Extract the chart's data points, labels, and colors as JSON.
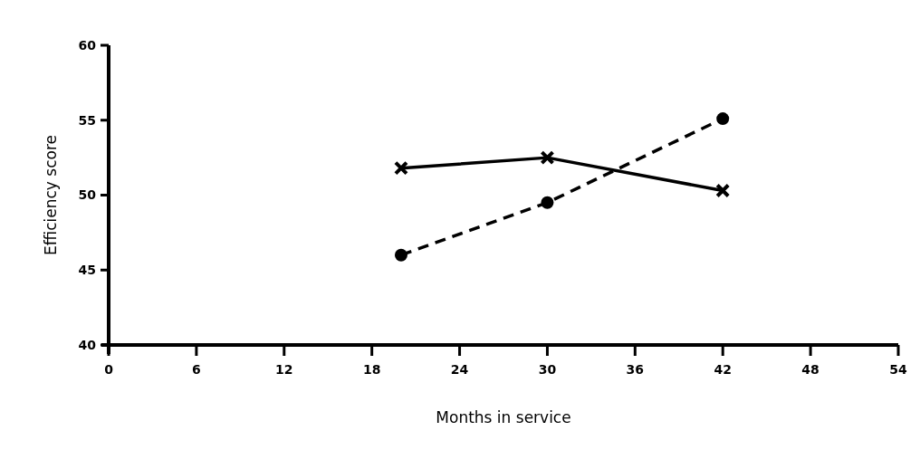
{
  "chart_data": {
    "type": "line",
    "xlabel": "Months in service",
    "ylabel": "Efficiency score",
    "xlim": [
      0,
      54
    ],
    "xticks": [
      0,
      6,
      12,
      18,
      24,
      30,
      36,
      42,
      48,
      54
    ],
    "ylim": [
      40,
      60
    ],
    "yticks": [
      40,
      45,
      50,
      55,
      60
    ],
    "grid": false,
    "series": [
      {
        "color": "#000000",
        "x": [
          20,
          30,
          42
        ],
        "values": [
          51.8,
          52.5,
          50.3
        ],
        "marker": "cross",
        "line_style": "solid"
      },
      {
        "color": "#000000",
        "x": [
          20,
          30,
          42
        ],
        "values": [
          46.0,
          49.5,
          55.1
        ],
        "marker": "circle",
        "line_style": "dashed"
      }
    ]
  }
}
